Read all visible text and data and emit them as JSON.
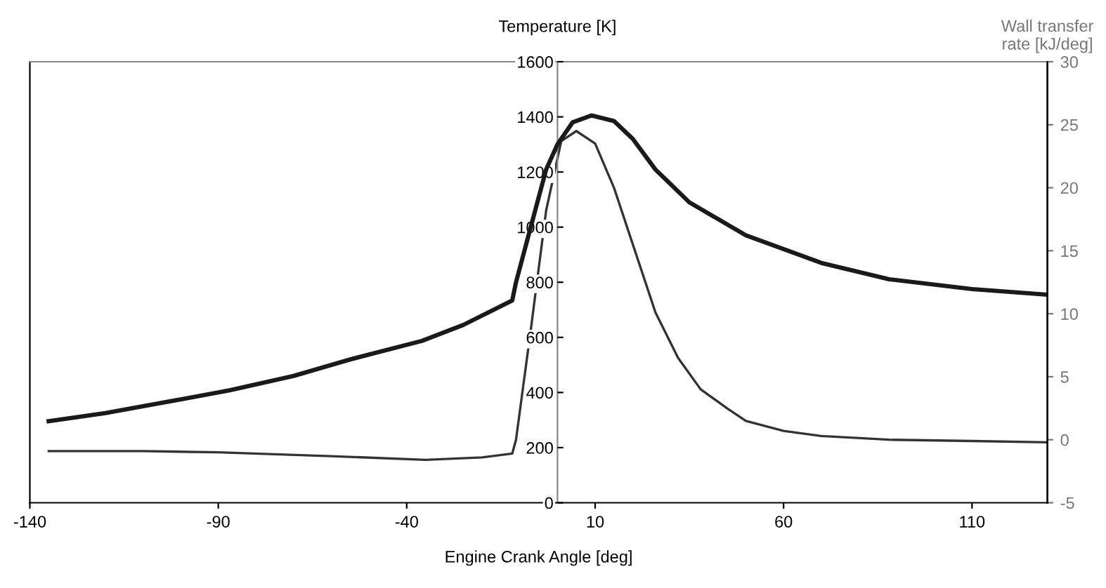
{
  "chart_data": {
    "type": "line",
    "xlabel": "Engine Crank Angle [deg]",
    "ylabel": "Temperature [K]",
    "y2label": "Wall transfer rate [kJ/deg]",
    "series": [
      {
        "color": "#1a1a1a",
        "x": [
          -135,
          -120,
          -100,
          -87,
          -70,
          -55,
          -36,
          -25,
          -12,
          -11,
          -7,
          -3,
          0,
          4,
          9,
          15,
          20,
          26,
          35,
          50,
          70,
          88,
          110,
          130
        ],
        "values": [
          296,
          325,
          375,
          408,
          460,
          520,
          587,
          645,
          734,
          800,
          1005,
          1209,
          1300,
          1380,
          1405,
          1385,
          1320,
          1209,
          1090,
          970,
          870,
          811,
          775,
          755
        ]
      },
      {
        "color": "#333333",
        "axis": "y2",
        "x": [
          -135,
          -110,
          -90,
          -60,
          -35,
          -20,
          -12,
          -11,
          -7,
          -3,
          1,
          5,
          10,
          15,
          20,
          26,
          32,
          38,
          45,
          50,
          60,
          70,
          88,
          110,
          130
        ],
        "values": [
          -0.9,
          -0.9,
          -1.0,
          -1.3,
          -1.6,
          -1.4,
          -1.1,
          0,
          8.9,
          18.2,
          23.7,
          24.5,
          23.5,
          20,
          15.5,
          10.1,
          6.5,
          4,
          2.5,
          1.5,
          0.7,
          0.3,
          0,
          -0.1,
          -0.2
        ]
      }
    ],
    "xlim": [
      -140,
      130
    ],
    "xticks": [
      -140,
      -90,
      -40,
      10,
      60,
      110
    ],
    "ylim": [
      0,
      1600
    ],
    "yticks": [
      0,
      200,
      400,
      600,
      800,
      1000,
      1200,
      1400,
      1600
    ],
    "y2lim": [
      -5,
      30
    ],
    "y2ticks": [
      -5,
      0,
      5,
      10,
      15,
      20,
      25,
      30
    ],
    "grid": false,
    "legend": false,
    "marker": "none",
    "line_style": "solid"
  }
}
